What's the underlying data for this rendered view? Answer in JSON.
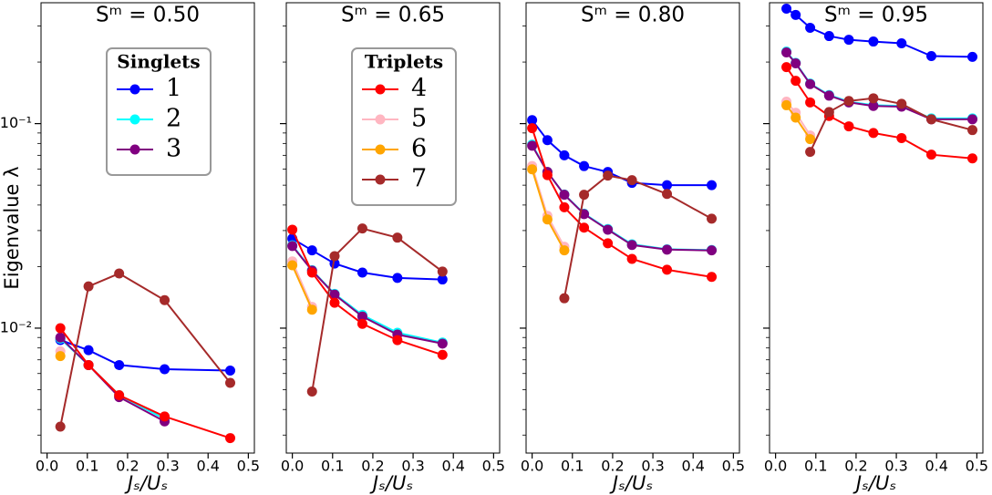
{
  "chart_data": [
    {
      "type": "line",
      "title": "Sᵐ = 0.50",
      "xlabel": "Jₛ/Uₛ",
      "ylabel": "Eigenvalue λ",
      "log_y": true,
      "xlim": [
        -0.015,
        0.515
      ],
      "xticks": [
        {
          "value": 0,
          "label": "0.0"
        },
        0.1,
        0.2,
        0.3,
        0.4,
        0.5
      ],
      "ylim": [
        0.00245,
        0.39
      ],
      "yticks": [
        {
          "value": 0.01,
          "label": "10⁻²"
        },
        {
          "value": 0.1,
          "label": "10⁻¹"
        }
      ],
      "legend": {
        "title": "Singlets",
        "loc": "upper center",
        "entries": [
          {
            "label": "1",
            "color": "#0000ff"
          },
          {
            "label": "2",
            "color": "#00ffff"
          },
          {
            "label": "3",
            "color": "#800080"
          }
        ]
      },
      "series": [
        {
          "color": "#0000ff",
          "x": [
            0.033,
            0.103,
            0.179,
            0.292,
            0.455
          ],
          "values": [
            0.00875,
            0.0078,
            0.0066,
            0.0063,
            0.0062
          ]
        },
        {
          "color": "#00ffff",
          "x": [
            0.033,
            0.103,
            0.179,
            0.292
          ],
          "values": [
            0.0089,
            0.0066,
            0.0047,
            0.0036
          ]
        },
        {
          "color": "#800080",
          "x": [
            0.033,
            0.103,
            0.179,
            0.292
          ],
          "values": [
            0.009,
            0.0066,
            0.0046,
            0.0035
          ]
        },
        {
          "color": "#ff0000",
          "x": [
            0.033,
            0.103,
            0.179,
            0.292,
            0.455
          ],
          "values": [
            0.01,
            0.0066,
            0.0047,
            0.0037,
            0.0029
          ]
        },
        {
          "color": "#ffb6c1",
          "x": [
            0.033
          ],
          "values": [
            0.0077
          ]
        },
        {
          "color": "#ffa500",
          "x": [
            0.033
          ],
          "values": [
            0.0073
          ]
        },
        {
          "color": "#a52a2a",
          "x": [
            0.033,
            0.103,
            0.179,
            0.292,
            0.455
          ],
          "values": [
            0.0033,
            0.016,
            0.0185,
            0.0137,
            0.0054
          ]
        }
      ]
    },
    {
      "type": "line",
      "title": "Sᵐ = 0.65",
      "xlabel": "Jₛ/Uₛ",
      "log_y": true,
      "xlim": [
        -0.015,
        0.515
      ],
      "xticks": [
        {
          "value": 0,
          "label": "0.0"
        },
        0.1,
        0.2,
        0.3,
        0.4,
        0.5
      ],
      "ylim": [
        0.00245,
        0.39
      ],
      "legend": {
        "title": "Triplets",
        "loc": "upper center",
        "entries": [
          {
            "label": "4",
            "color": "#ff0000"
          },
          {
            "label": "5",
            "color": "#ffb6c1"
          },
          {
            "label": "6",
            "color": "#ffa500"
          },
          {
            "label": "7",
            "color": "#a52a2a"
          }
        ]
      },
      "series": [
        {
          "color": "#0000ff",
          "x": [
            0,
            0.049,
            0.105,
            0.174,
            0.261,
            0.373
          ],
          "values": [
            0.0274,
            0.024,
            0.0207,
            0.0187,
            0.0176,
            0.0173
          ]
        },
        {
          "color": "#00ffff",
          "x": [
            0,
            0.049,
            0.105,
            0.174,
            0.261,
            0.373
          ],
          "values": [
            0.0254,
            0.0192,
            0.0147,
            0.0116,
            0.0095,
            0.0085
          ]
        },
        {
          "color": "#800080",
          "x": [
            0,
            0.049,
            0.105,
            0.174,
            0.261,
            0.373
          ],
          "values": [
            0.0252,
            0.0191,
            0.0146,
            0.0114,
            0.0093,
            0.0084
          ]
        },
        {
          "color": "#ff0000",
          "x": [
            0,
            0.049,
            0.105,
            0.174,
            0.261,
            0.373
          ],
          "values": [
            0.0303,
            0.0187,
            0.0133,
            0.0105,
            0.00874,
            0.0074
          ]
        },
        {
          "color": "#ffb6c1",
          "x": [
            0,
            0.049
          ],
          "values": [
            0.0212,
            0.0127
          ]
        },
        {
          "color": "#ffa500",
          "x": [
            0,
            0.049
          ],
          "values": [
            0.0203,
            0.0123
          ]
        },
        {
          "color": "#a52a2a",
          "x": [
            0.049,
            0.105,
            0.174,
            0.261,
            0.373
          ],
          "values": [
            0.0049,
            0.0225,
            0.0307,
            0.0277,
            0.0189
          ]
        }
      ]
    },
    {
      "type": "line",
      "title": "Sᵐ = 0.80",
      "xlabel": "Jₛ/Uₛ",
      "log_y": true,
      "xlim": [
        -0.015,
        0.515
      ],
      "xticks": [
        {
          "value": 0,
          "label": "0.0"
        },
        0.1,
        0.2,
        0.3,
        0.4,
        0.5
      ],
      "ylim": [
        0.00245,
        0.39
      ],
      "series": [
        {
          "color": "#0000ff",
          "x": [
            0,
            0.038,
            0.08,
            0.129,
            0.188,
            0.248,
            0.335,
            0.446
          ],
          "values": [
            0.104,
            0.083,
            0.07,
            0.062,
            0.058,
            0.0513,
            0.05,
            0.05
          ]
        },
        {
          "color": "#00ffff",
          "x": [
            0,
            0.038,
            0.08,
            0.129,
            0.188,
            0.248,
            0.335,
            0.446
          ],
          "values": [
            0.079,
            0.058,
            0.045,
            0.0363,
            0.0305,
            0.0257,
            0.0243,
            0.0241
          ]
        },
        {
          "color": "#800080",
          "x": [
            0,
            0.038,
            0.08,
            0.129,
            0.188,
            0.248,
            0.335,
            0.446
          ],
          "values": [
            0.078,
            0.058,
            0.0449,
            0.0361,
            0.0303,
            0.0255,
            0.0242,
            0.024
          ]
        },
        {
          "color": "#ff0000",
          "x": [
            0,
            0.038,
            0.08,
            0.129,
            0.188,
            0.248,
            0.335,
            0.446
          ],
          "values": [
            0.095,
            0.056,
            0.039,
            0.031,
            0.026,
            0.0218,
            0.0193,
            0.0178
          ]
        },
        {
          "color": "#ffb6c1",
          "x": [
            0,
            0.038,
            0.08
          ],
          "values": [
            0.062,
            0.0354,
            0.025
          ]
        },
        {
          "color": "#ffa500",
          "x": [
            0,
            0.038,
            0.08
          ],
          "values": [
            0.0598,
            0.034,
            0.024
          ]
        },
        {
          "color": "#a52a2a",
          "x": [
            0.08,
            0.129,
            0.188,
            0.248,
            0.335,
            0.446
          ],
          "values": [
            0.014,
            0.0449,
            0.0557,
            0.0529,
            0.0453,
            0.0343
          ]
        }
      ]
    },
    {
      "type": "line",
      "title": "Sᵐ = 0.95",
      "xlabel": "Jₛ/Uₛ",
      "log_y": true,
      "xlim": [
        -0.015,
        0.515
      ],
      "xticks": [
        {
          "value": 0,
          "label": "0.0"
        },
        0.1,
        0.2,
        0.3,
        0.4,
        0.5
      ],
      "ylim": [
        0.00245,
        0.39
      ],
      "series": [
        {
          "color": "#0000ff",
          "x": [
            0.027,
            0.05,
            0.086,
            0.133,
            0.182,
            0.243,
            0.313,
            0.387,
            0.489
          ],
          "values": [
            0.365,
            0.34,
            0.294,
            0.268,
            0.257,
            0.252,
            0.247,
            0.214,
            0.212
          ]
        },
        {
          "color": "#00ffff",
          "x": [
            0.027,
            0.05,
            0.086,
            0.133,
            0.182,
            0.243,
            0.313,
            0.387,
            0.489
          ],
          "values": [
            0.225,
            0.198,
            0.157,
            0.138,
            0.128,
            0.123,
            0.122,
            0.106,
            0.106
          ]
        },
        {
          "color": "#800080",
          "x": [
            0.027,
            0.05,
            0.086,
            0.133,
            0.182,
            0.243,
            0.313,
            0.387,
            0.489
          ],
          "values": [
            0.223,
            0.197,
            0.156,
            0.137,
            0.127,
            0.122,
            0.121,
            0.105,
            0.105
          ]
        },
        {
          "color": "#ff0000",
          "x": [
            0.027,
            0.05,
            0.086,
            0.133,
            0.182,
            0.243,
            0.313,
            0.387,
            0.489
          ],
          "values": [
            0.189,
            0.162,
            0.127,
            0.109,
            0.097,
            0.09,
            0.085,
            0.0705,
            0.0676
          ]
        },
        {
          "color": "#ffb6c1",
          "x": [
            0.027,
            0.05,
            0.086
          ],
          "values": [
            0.128,
            0.113,
            0.0875
          ]
        },
        {
          "color": "#ffa500",
          "x": [
            0.027,
            0.05,
            0.086
          ],
          "values": [
            0.123,
            0.107,
            0.084
          ]
        },
        {
          "color": "#a52a2a",
          "x": [
            0.086,
            0.133,
            0.182,
            0.243,
            0.313,
            0.387,
            0.489
          ],
          "values": [
            0.0727,
            0.114,
            0.129,
            0.133,
            0.125,
            0.105,
            0.093
          ]
        }
      ]
    }
  ]
}
